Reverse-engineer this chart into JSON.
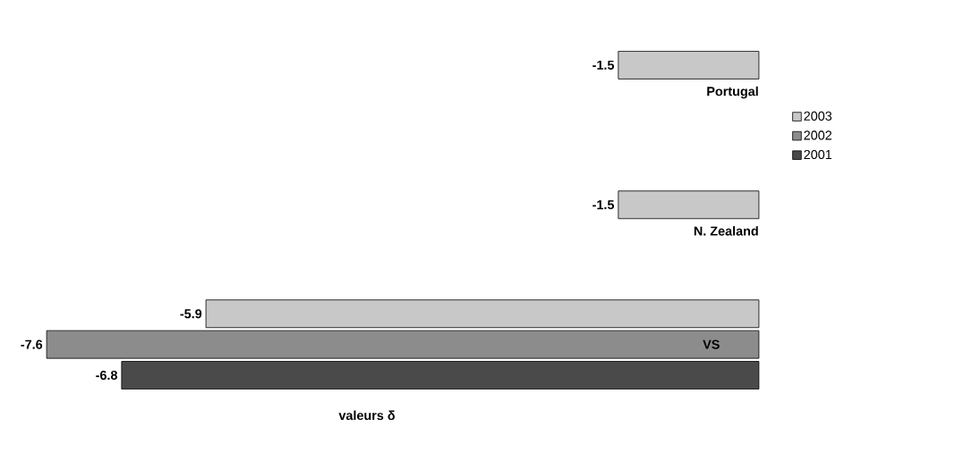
{
  "chart_data": {
    "type": "bar",
    "orientation": "horizontal",
    "xlabel": "valeurs δ",
    "categories": [
      "Portugal",
      "N. Zealand",
      "VS"
    ],
    "series": [
      {
        "name": "2003",
        "color": "#c8c8c8",
        "values": [
          -1.5,
          -1.5,
          -5.9
        ]
      },
      {
        "name": "2002",
        "color": "#8c8c8c",
        "values": [
          null,
          null,
          -7.6
        ]
      },
      {
        "name": "2001",
        "color": "#4a4a4a",
        "values": [
          null,
          null,
          -6.8
        ]
      }
    ],
    "data_labels": true,
    "legend": "right"
  }
}
